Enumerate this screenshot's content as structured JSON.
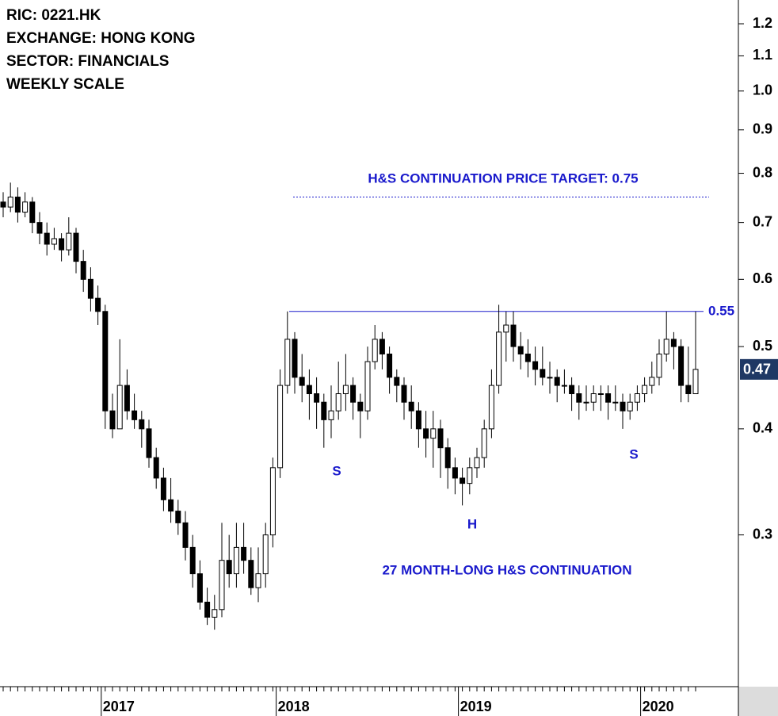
{
  "chart_data": {
    "type": "candlestick",
    "header": [
      "RIC: 0221.HK",
      "EXCHANGE: HONG KONG",
      "SECTOR: FINANCIALS",
      "WEEKLY SCALE"
    ],
    "annotations": [
      "H&S CONTINUATION PRICE TARGET: 0.75",
      "27 MONTH-LONG H&S CONTINUATION",
      "S",
      "H",
      "S"
    ],
    "resistance": 0.55,
    "target_level": 0.75,
    "last_price": 0.47,
    "log_scale": true,
    "ylim": [
      0.19,
      1.28
    ],
    "yticks": [
      1.2,
      1.1,
      {
        "value": 1,
        "label": "1.0"
      },
      0.9,
      0.8,
      0.7,
      0.6,
      0.5,
      0.4,
      0.3
    ],
    "up_color": "#ffffff",
    "down_color": "#000000",
    "annotation_color": "#1a1acc",
    "categories": [
      null,
      null,
      null,
      null,
      null,
      null,
      null,
      null,
      null,
      null,
      null,
      null,
      null,
      null,
      "2017",
      null,
      null,
      null,
      null,
      null,
      null,
      null,
      null,
      null,
      null,
      null,
      null,
      null,
      null,
      null,
      null,
      null,
      null,
      null,
      null,
      null,
      null,
      null,
      "2018",
      null,
      null,
      null,
      null,
      null,
      null,
      null,
      null,
      null,
      null,
      null,
      null,
      null,
      null,
      null,
      null,
      null,
      null,
      null,
      null,
      null,
      null,
      null,
      null,
      "2019",
      null,
      null,
      null,
      null,
      null,
      null,
      null,
      null,
      null,
      null,
      null,
      null,
      null,
      null,
      null,
      null,
      null,
      null,
      null,
      null,
      null,
      null,
      null,
      null,
      "2020",
      null,
      null,
      null,
      null,
      null,
      null,
      null
    ],
    "ohlc": [
      [
        0.74,
        0.76,
        0.71,
        0.73
      ],
      [
        0.73,
        0.78,
        0.72,
        0.75
      ],
      [
        0.75,
        0.77,
        0.7,
        0.72
      ],
      [
        0.72,
        0.76,
        0.71,
        0.74
      ],
      [
        0.74,
        0.75,
        0.68,
        0.7
      ],
      [
        0.7,
        0.72,
        0.66,
        0.68
      ],
      [
        0.68,
        0.7,
        0.64,
        0.66
      ],
      [
        0.66,
        0.69,
        0.65,
        0.67
      ],
      [
        0.67,
        0.68,
        0.63,
        0.65
      ],
      [
        0.65,
        0.71,
        0.64,
        0.68
      ],
      [
        0.68,
        0.69,
        0.61,
        0.63
      ],
      [
        0.63,
        0.65,
        0.58,
        0.6
      ],
      [
        0.6,
        0.62,
        0.55,
        0.57
      ],
      [
        0.57,
        0.59,
        0.53,
        0.55
      ],
      [
        0.55,
        0.56,
        0.4,
        0.42
      ],
      [
        0.42,
        0.44,
        0.39,
        0.4
      ],
      [
        0.4,
        0.51,
        0.4,
        0.45
      ],
      [
        0.45,
        0.47,
        0.41,
        0.42
      ],
      [
        0.42,
        0.44,
        0.4,
        0.41
      ],
      [
        0.41,
        0.42,
        0.38,
        0.4
      ],
      [
        0.4,
        0.41,
        0.36,
        0.37
      ],
      [
        0.37,
        0.38,
        0.34,
        0.35
      ],
      [
        0.35,
        0.36,
        0.32,
        0.33
      ],
      [
        0.33,
        0.35,
        0.31,
        0.32
      ],
      [
        0.32,
        0.33,
        0.3,
        0.31
      ],
      [
        0.31,
        0.32,
        0.28,
        0.29
      ],
      [
        0.29,
        0.3,
        0.26,
        0.27
      ],
      [
        0.27,
        0.28,
        0.245,
        0.25
      ],
      [
        0.25,
        0.26,
        0.235,
        0.24
      ],
      [
        0.24,
        0.255,
        0.232,
        0.245
      ],
      [
        0.245,
        0.31,
        0.24,
        0.28
      ],
      [
        0.28,
        0.3,
        0.26,
        0.27
      ],
      [
        0.27,
        0.31,
        0.26,
        0.29
      ],
      [
        0.29,
        0.31,
        0.27,
        0.28
      ],
      [
        0.28,
        0.29,
        0.255,
        0.26
      ],
      [
        0.26,
        0.29,
        0.25,
        0.27
      ],
      [
        0.27,
        0.31,
        0.26,
        0.3
      ],
      [
        0.3,
        0.37,
        0.29,
        0.36
      ],
      [
        0.36,
        0.47,
        0.35,
        0.45
      ],
      [
        0.45,
        0.55,
        0.44,
        0.51
      ],
      [
        0.51,
        0.52,
        0.44,
        0.46
      ],
      [
        0.46,
        0.49,
        0.43,
        0.45
      ],
      [
        0.45,
        0.47,
        0.41,
        0.44
      ],
      [
        0.44,
        0.46,
        0.4,
        0.43
      ],
      [
        0.43,
        0.44,
        0.38,
        0.41
      ],
      [
        0.41,
        0.45,
        0.39,
        0.42
      ],
      [
        0.42,
        0.48,
        0.41,
        0.44
      ],
      [
        0.44,
        0.49,
        0.42,
        0.45
      ],
      [
        0.45,
        0.46,
        0.41,
        0.43
      ],
      [
        0.43,
        0.44,
        0.39,
        0.42
      ],
      [
        0.42,
        0.5,
        0.41,
        0.48
      ],
      [
        0.48,
        0.53,
        0.47,
        0.51
      ],
      [
        0.51,
        0.52,
        0.47,
        0.49
      ],
      [
        0.49,
        0.5,
        0.44,
        0.46
      ],
      [
        0.46,
        0.47,
        0.43,
        0.45
      ],
      [
        0.45,
        0.46,
        0.41,
        0.43
      ],
      [
        0.43,
        0.45,
        0.4,
        0.42
      ],
      [
        0.42,
        0.43,
        0.38,
        0.4
      ],
      [
        0.4,
        0.42,
        0.37,
        0.39
      ],
      [
        0.39,
        0.42,
        0.36,
        0.4
      ],
      [
        0.4,
        0.41,
        0.35,
        0.38
      ],
      [
        0.38,
        0.39,
        0.34,
        0.36
      ],
      [
        0.36,
        0.37,
        0.335,
        0.35
      ],
      [
        0.35,
        0.36,
        0.325,
        0.345
      ],
      [
        0.345,
        0.37,
        0.335,
        0.36
      ],
      [
        0.36,
        0.38,
        0.35,
        0.37
      ],
      [
        0.37,
        0.41,
        0.36,
        0.4
      ],
      [
        0.4,
        0.47,
        0.39,
        0.45
      ],
      [
        0.45,
        0.56,
        0.44,
        0.52
      ],
      [
        0.52,
        0.55,
        0.48,
        0.53
      ],
      [
        0.53,
        0.55,
        0.48,
        0.5
      ],
      [
        0.5,
        0.52,
        0.47,
        0.49
      ],
      [
        0.49,
        0.51,
        0.46,
        0.48
      ],
      [
        0.48,
        0.5,
        0.45,
        0.47
      ],
      [
        0.47,
        0.5,
        0.45,
        0.46
      ],
      [
        0.46,
        0.48,
        0.44,
        0.46
      ],
      [
        0.46,
        0.47,
        0.43,
        0.45
      ],
      [
        0.45,
        0.47,
        0.44,
        0.45
      ],
      [
        0.45,
        0.46,
        0.42,
        0.44
      ],
      [
        0.44,
        0.45,
        0.41,
        0.43
      ],
      [
        0.43,
        0.45,
        0.42,
        0.43
      ],
      [
        0.43,
        0.45,
        0.42,
        0.44
      ],
      [
        0.44,
        0.45,
        0.42,
        0.44
      ],
      [
        0.44,
        0.45,
        0.41,
        0.43
      ],
      [
        0.43,
        0.45,
        0.42,
        0.43
      ],
      [
        0.43,
        0.44,
        0.4,
        0.42
      ],
      [
        0.42,
        0.44,
        0.41,
        0.43
      ],
      [
        0.43,
        0.45,
        0.42,
        0.44
      ],
      [
        0.44,
        0.46,
        0.43,
        0.45
      ],
      [
        0.45,
        0.48,
        0.44,
        0.46
      ],
      [
        0.46,
        0.51,
        0.45,
        0.49
      ],
      [
        0.49,
        0.55,
        0.48,
        0.51
      ],
      [
        0.51,
        0.52,
        0.47,
        0.5
      ],
      [
        0.5,
        0.51,
        0.43,
        0.45
      ],
      [
        0.45,
        0.5,
        0.43,
        0.44
      ],
      [
        0.44,
        0.55,
        0.44,
        0.47
      ]
    ]
  }
}
